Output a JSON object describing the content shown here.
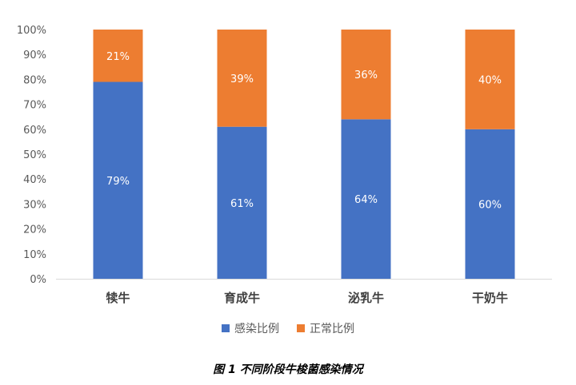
{
  "chart_data": {
    "type": "bar",
    "stacked": true,
    "categories": [
      "犊牛",
      "育成牛",
      "泌乳牛",
      "干奶牛"
    ],
    "series": [
      {
        "name": "感染比例",
        "values": [
          79,
          61,
          64,
          60
        ],
        "labels": [
          "79%",
          "61%",
          "64%",
          "60%"
        ],
        "color": "#4472C4"
      },
      {
        "name": "正常比例",
        "values": [
          21,
          39,
          36,
          40
        ],
        "labels": [
          "21%",
          "39%",
          "36%",
          "40%"
        ],
        "color": "#ED7D31"
      }
    ],
    "ylim": [
      0,
      100
    ],
    "yticks": [
      "0%",
      "10%",
      "20%",
      "30%",
      "40%",
      "50%",
      "60%",
      "70%",
      "80%",
      "90%",
      "100%"
    ],
    "grid": false,
    "legend_position": "bottom"
  },
  "caption": "图 1  不同阶段牛梭菌感染情况"
}
